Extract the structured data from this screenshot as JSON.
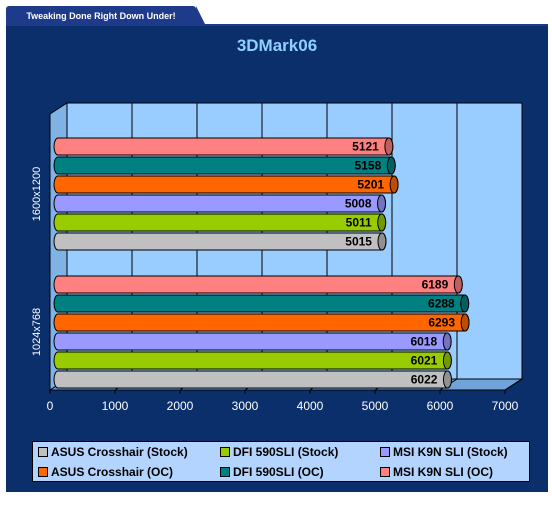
{
  "header": {
    "tab_label": "Tweaking Done Right Down Under!"
  },
  "chart_data": {
    "type": "bar",
    "orientation": "horizontal",
    "title": "3DMark06",
    "xlim": [
      0,
      7000
    ],
    "xticks": [
      0,
      1000,
      2000,
      3000,
      4000,
      5000,
      6000,
      7000
    ],
    "grid": true,
    "legend_position": "bottom",
    "categories": [
      "1600x1200",
      "1024x768"
    ],
    "series": [
      {
        "name": "ASUS Crosshair (Stock)",
        "color": "#c0c0c0",
        "values": [
          5015,
          6022
        ]
      },
      {
        "name": "DFI 590SLI (Stock)",
        "color": "#99cc00",
        "values": [
          5011,
          6021
        ]
      },
      {
        "name": "MSI K9N SLI (Stock)",
        "color": "#9999ff",
        "values": [
          5008,
          6018
        ]
      },
      {
        "name": "ASUS Crosshair (OC)",
        "color": "#ff6600",
        "values": [
          5201,
          6293
        ]
      },
      {
        "name": "DFI 590SLI (OC)",
        "color": "#008080",
        "values": [
          5158,
          6288
        ]
      },
      {
        "name": "MSI K9N SLI (OC)",
        "color": "#ff8080",
        "values": [
          5121,
          6189
        ]
      }
    ]
  }
}
